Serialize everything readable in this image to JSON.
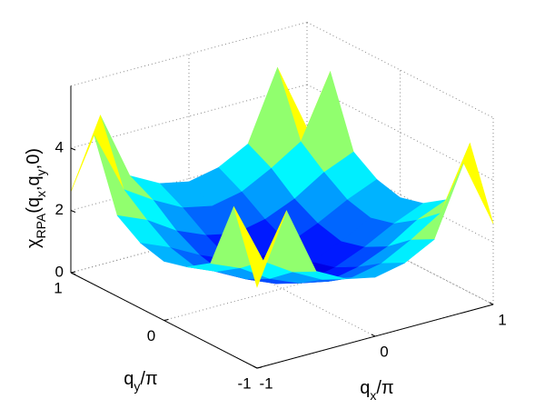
{
  "chart_data": {
    "type": "surface",
    "colormap": "jet",
    "clim": [
      0,
      6
    ],
    "grid": true,
    "xlabel": [
      {
        "text": "q"
      },
      {
        "text": "x",
        "sub": true
      },
      {
        "text": "/π"
      }
    ],
    "ylabel": [
      {
        "text": "q"
      },
      {
        "text": "y",
        "sub": true
      },
      {
        "text": "/π"
      }
    ],
    "zlabel": [
      {
        "text": "χ"
      },
      {
        "text": "RPA",
        "sub": true
      },
      {
        "text": "(q"
      },
      {
        "text": "x",
        "sub": true
      },
      {
        "text": ",q"
      },
      {
        "text": "y",
        "sub": true
      },
      {
        "text": ",0)"
      }
    ],
    "x": [
      -1,
      -0.75,
      -0.5,
      -0.25,
      0,
      0.25,
      0.5,
      0.75,
      1
    ],
    "y": [
      -1,
      -0.75,
      -0.5,
      -0.25,
      0,
      0.25,
      0.5,
      0.75,
      1
    ],
    "z": [
      [
        2.6,
        4.8,
        2.6,
        2.1,
        1.9,
        2.1,
        2.6,
        4.8,
        2.6
      ],
      [
        4.8,
        2.8,
        2.2,
        1.7,
        1.5,
        1.7,
        2.2,
        2.8,
        4.8
      ],
      [
        2.6,
        2.2,
        1.6,
        1.2,
        1.0,
        1.2,
        1.6,
        2.2,
        2.6
      ],
      [
        2.1,
        1.7,
        1.2,
        0.8,
        0.6,
        0.8,
        1.2,
        1.7,
        2.1
      ],
      [
        1.9,
        1.5,
        1.0,
        0.6,
        0.4,
        0.6,
        1.0,
        1.5,
        1.9
      ],
      [
        2.1,
        1.7,
        1.2,
        0.8,
        0.6,
        0.8,
        1.2,
        1.7,
        2.1
      ],
      [
        2.6,
        2.2,
        1.6,
        1.2,
        1.0,
        1.2,
        1.6,
        2.2,
        2.6
      ],
      [
        4.8,
        2.8,
        2.2,
        1.7,
        1.5,
        1.7,
        2.2,
        2.8,
        4.8
      ],
      [
        2.6,
        4.8,
        2.6,
        2.1,
        1.9,
        2.1,
        2.6,
        4.8,
        2.6
      ]
    ],
    "xlim": [
      -1,
      1
    ],
    "ylim": [
      -1,
      1
    ],
    "zlim": [
      0,
      6
    ],
    "xticks": [
      -1,
      0,
      1
    ],
    "yticks": [
      -1,
      0,
      1
    ],
    "zticks": [
      0,
      2,
      4
    ]
  }
}
